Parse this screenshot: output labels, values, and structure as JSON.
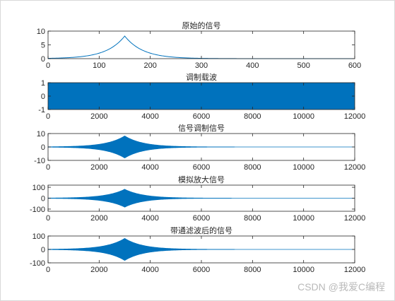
{
  "watermark": "CSDN @我爱C编程",
  "colors": {
    "line": "#0072BD",
    "axis": "#262626",
    "text": "#262626"
  },
  "chart_data": [
    {
      "type": "line",
      "title": "原始的信号",
      "xlim": [
        0,
        600
      ],
      "ylim": [
        0,
        10
      ],
      "xticks": [
        0,
        100,
        200,
        300,
        400,
        500,
        600
      ],
      "yticks": [
        0,
        5,
        10
      ],
      "signal": "two-sided exponential peak",
      "peak_x": 150,
      "peak_y": 8.2,
      "x": [
        0,
        50,
        100,
        125,
        140,
        150,
        160,
        175,
        200,
        250,
        300,
        400,
        500,
        600
      ],
      "y": [
        0.1,
        0.5,
        2.2,
        4.3,
        6.5,
        8.2,
        6.5,
        4.3,
        2.2,
        0.6,
        0.2,
        0.03,
        0.01,
        0.0
      ]
    },
    {
      "type": "line",
      "title": "调制载波",
      "xlim": [
        0,
        12000
      ],
      "ylim": [
        -1,
        1
      ],
      "xticks": [
        0,
        2000,
        4000,
        6000,
        8000,
        10000,
        12000
      ],
      "yticks": [
        -1,
        0,
        1
      ],
      "signal": "high-frequency carrier",
      "amplitude": 1
    },
    {
      "type": "line",
      "title": "信号调制信号",
      "xlim": [
        0,
        12000
      ],
      "ylim": [
        -10,
        10
      ],
      "xticks": [
        0,
        2000,
        4000,
        6000,
        8000,
        10000,
        12000
      ],
      "yticks": [
        -10,
        0,
        10
      ],
      "signal": "modulated carrier, envelope follows original signal",
      "peak_x": 3000,
      "peak_amplitude": 8.2
    },
    {
      "type": "line",
      "title": "模拟放大信号",
      "xlim": [
        0,
        12000
      ],
      "ylim": [
        -120,
        120
      ],
      "xticks": [
        0,
        2000,
        4000,
        6000,
        8000,
        10000,
        12000
      ],
      "yticks": [
        -100,
        0,
        100
      ],
      "signal": "amplified modulated signal",
      "peak_x": 3000,
      "peak_amplitude": 82
    },
    {
      "type": "line",
      "title": "带通滤波后的信号",
      "xlim": [
        0,
        12000
      ],
      "ylim": [
        -100,
        100
      ],
      "xticks": [
        0,
        2000,
        4000,
        6000,
        8000,
        10000,
        12000
      ],
      "yticks": [
        -100,
        0,
        100
      ],
      "signal": "band-pass filtered signal",
      "peak_x": 3000,
      "peak_amplitude": 82
    }
  ]
}
